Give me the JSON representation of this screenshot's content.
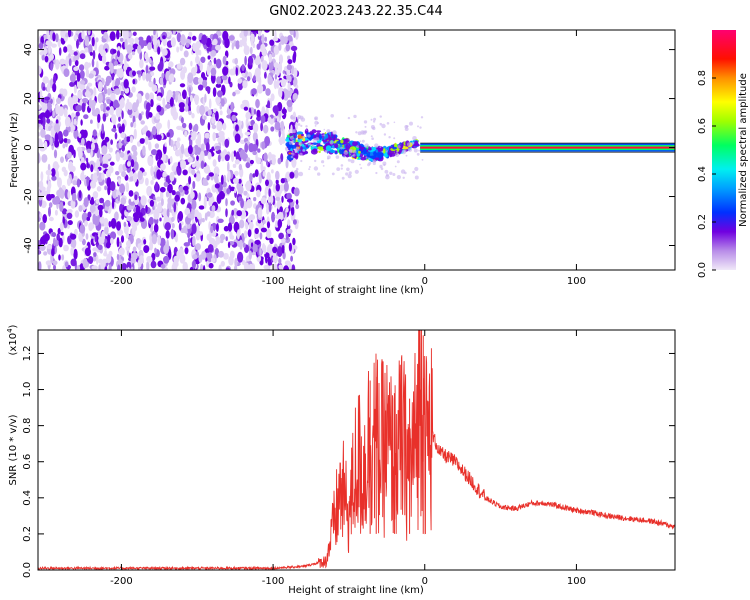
{
  "figure": {
    "title": "GN02.2023.243.22.35.C44"
  },
  "chart_data": [
    {
      "type": "heatmap",
      "name": "spectrogram",
      "xlabel": "Height of straight line (km)",
      "ylabel": "Frequency (Hz)",
      "xlim": [
        -255,
        165
      ],
      "ylim": [
        -50,
        48
      ],
      "xticks": [
        -200,
        -100,
        0,
        100
      ],
      "yticks": [
        -40,
        -20,
        0,
        20,
        40
      ],
      "colorbar": {
        "label": "Normalized spectral amplitude",
        "range": [
          0.0,
          1.0
        ],
        "ticks": [
          0.0,
          0.2,
          0.4,
          0.6,
          0.8
        ],
        "colors": [
          "#f0e8f8",
          "#7000e0",
          "#0040ff",
          "#00e0ff",
          "#00ff40",
          "#ffff00",
          "#ff8000",
          "#ff0000",
          "#ff0060"
        ]
      },
      "regions": [
        {
          "x_range": [
            -255,
            -88
          ],
          "freq_range": [
            -50,
            48
          ],
          "amplitude": "0.0-0.2",
          "pattern": "random noise"
        },
        {
          "x_range": [
            -88,
            -10
          ],
          "freq_range": [
            -12,
            10
          ],
          "amplitude": "0.2-0.7",
          "pattern": "scattered blobs along line"
        },
        {
          "x_range": [
            0,
            165
          ],
          "freq": 0,
          "amplitude": "1.0",
          "pattern": "constant tone"
        }
      ]
    },
    {
      "type": "line",
      "name": "snr",
      "xlabel": "Height of straight line (km)",
      "ylabel": "SNR (10 * v/v)",
      "ylabel_exponent": "(x10",
      "exponent_power": "4",
      "exponent_close": ")",
      "xlim": [
        -255,
        165
      ],
      "ylim": [
        0,
        1.33
      ],
      "xticks": [
        -200,
        -100,
        0,
        100
      ],
      "yticks": [
        0.0,
        0.2,
        0.4,
        0.6,
        0.8,
        1.0,
        1.2
      ],
      "series": [
        {
          "color": "#e8302a",
          "x": [
            -255,
            -200,
            -150,
            -100,
            -80,
            -65,
            -60,
            -55,
            -50,
            -45,
            -40,
            -35,
            -30,
            -25,
            -20,
            -15,
            -10,
            -5,
            -1,
            0,
            5,
            10,
            20,
            30,
            40,
            50,
            60,
            70,
            80,
            90,
            100,
            110,
            120,
            130,
            140,
            150,
            165
          ],
          "y": [
            0.01,
            0.01,
            0.01,
            0.01,
            0.02,
            0.05,
            0.25,
            0.45,
            0.3,
            0.6,
            0.55,
            0.8,
            0.65,
            0.7,
            0.6,
            0.72,
            0.55,
            0.78,
            1.3,
            0.7,
            0.75,
            0.65,
            0.6,
            0.5,
            0.4,
            0.35,
            0.34,
            0.37,
            0.37,
            0.35,
            0.33,
            0.32,
            0.3,
            0.29,
            0.28,
            0.27,
            0.24
          ]
        }
      ],
      "spike_heights": [
        {
          "x": -36,
          "y": 1.05
        },
        {
          "x": -32,
          "y": 1.07
        },
        {
          "x": -20,
          "y": 0.98
        },
        {
          "x": -10,
          "y": 0.95
        },
        {
          "x": -1,
          "y": 1.3
        }
      ]
    }
  ]
}
